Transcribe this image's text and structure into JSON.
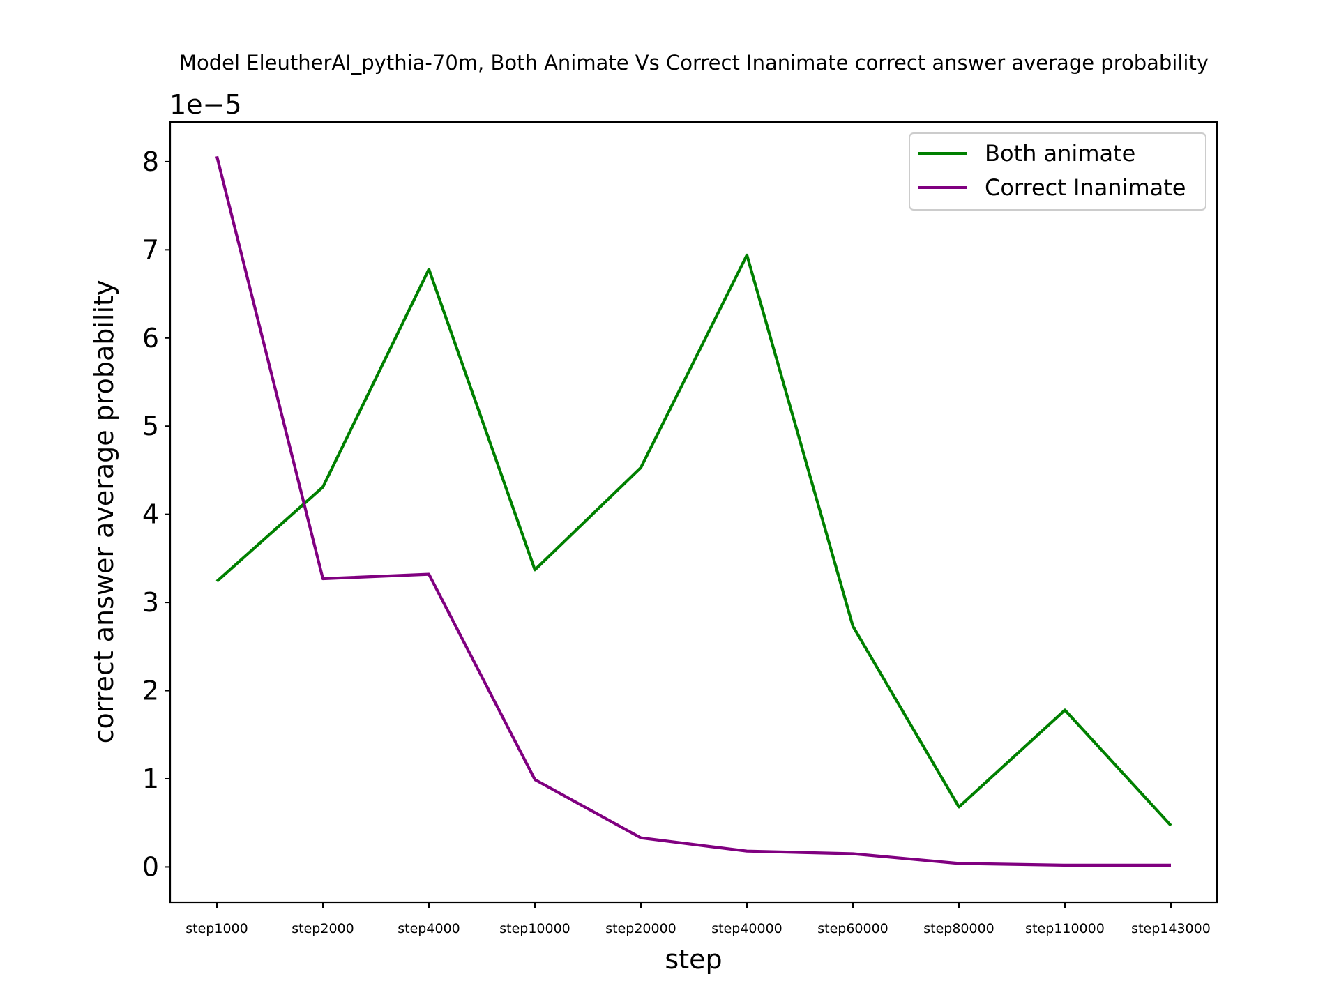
{
  "chart_data": {
    "type": "line",
    "title": "Model EleutherAI_pythia-70m, Both Animate Vs Correct Inanimate correct answer average probability",
    "xlabel": "step",
    "ylabel": "correct answer average probability",
    "y_offset_label": "1e−5",
    "categories": [
      "step1000",
      "step2000",
      "step4000",
      "step10000",
      "step20000",
      "step40000",
      "step60000",
      "step80000",
      "step110000",
      "step143000"
    ],
    "ylim": [
      -0.4,
      8.45
    ],
    "yticks": [
      0,
      1,
      2,
      3,
      4,
      5,
      6,
      7,
      8
    ],
    "grid": false,
    "legend_position": "top-right",
    "series": [
      {
        "name": "Both animate",
        "color": "#008000",
        "values": [
          3.24,
          4.31,
          6.78,
          3.37,
          4.53,
          6.94,
          2.73,
          0.68,
          1.78,
          0.47
        ]
      },
      {
        "name": "Correct Inanimate",
        "color": "#800080",
        "values": [
          8.06,
          3.27,
          3.32,
          0.99,
          0.33,
          0.18,
          0.15,
          0.04,
          0.02,
          0.02
        ]
      }
    ]
  }
}
